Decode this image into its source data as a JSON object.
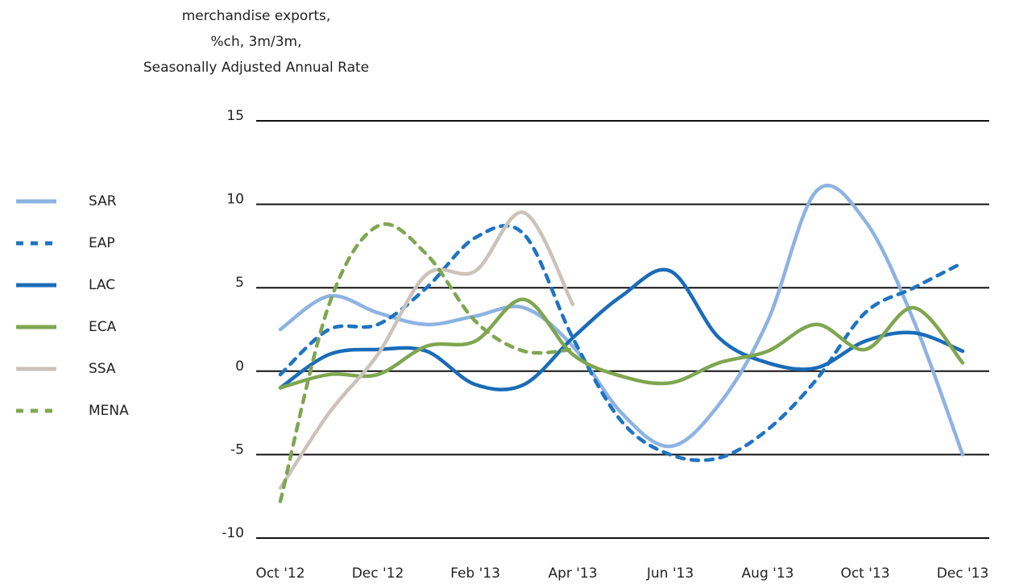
{
  "chart_data": {
    "type": "line",
    "title": [
      "merchandise exports,",
      "%ch, 3m/3m,",
      "Seasonally Adjusted Annual Rate"
    ],
    "categories": [
      "Oct '12",
      null,
      "Dec '12",
      null,
      "Feb '13",
      null,
      "Apr '13",
      null,
      "Jun '13",
      null,
      "Aug '13",
      null,
      "Oct '13",
      null,
      "Dec '13"
    ],
    "ylim": [
      -10,
      15
    ],
    "yticks": [
      15,
      10,
      5,
      0,
      -5,
      -10
    ],
    "grid": true,
    "legend": "left",
    "series": [
      {
        "name": "SAR",
        "color": "#8db3e2",
        "dash": false,
        "values": [
          2.5,
          4.5,
          3.5,
          2.8,
          3.3,
          3.8,
          1.5,
          -2.5,
          -4.5,
          -2,
          3,
          10.8,
          9,
          3,
          -5
        ]
      },
      {
        "name": "EAP",
        "color": "#1f74c2",
        "dash": true,
        "values": [
          -0.2,
          2.5,
          2.8,
          5,
          8,
          8.2,
          2,
          -3,
          -5,
          -5.2,
          -3.5,
          -0.5,
          3.5,
          5,
          6.5
        ]
      },
      {
        "name": "LAC",
        "color": "#1a6cb8",
        "dash": false,
        "values": [
          -1,
          1,
          1.3,
          1.2,
          -0.8,
          -0.8,
          2,
          4.5,
          6,
          2,
          0.5,
          0.2,
          1.8,
          2.3,
          1.2
        ]
      },
      {
        "name": "ECA",
        "color": "#7fa650",
        "dash": false,
        "values": [
          -1,
          -0.2,
          -0.2,
          1.5,
          1.8,
          4.3,
          1,
          -0.3,
          -0.7,
          0.5,
          1.2,
          2.8,
          1.3,
          3.8,
          0.5
        ]
      },
      {
        "name": "SSA",
        "color": "#cbc3ba",
        "dash": false,
        "values": [
          -7,
          -2.5,
          1,
          5.8,
          6,
          9.5,
          4,
          null,
          null,
          null,
          null,
          null,
          null,
          null,
          null
        ]
      },
      {
        "name": "MENA",
        "color": "#7fa650",
        "dash": true,
        "values": [
          -7.8,
          4,
          8.7,
          7,
          3,
          1.2,
          1.3,
          null,
          null,
          null,
          null,
          null,
          null,
          null,
          null
        ]
      }
    ]
  }
}
